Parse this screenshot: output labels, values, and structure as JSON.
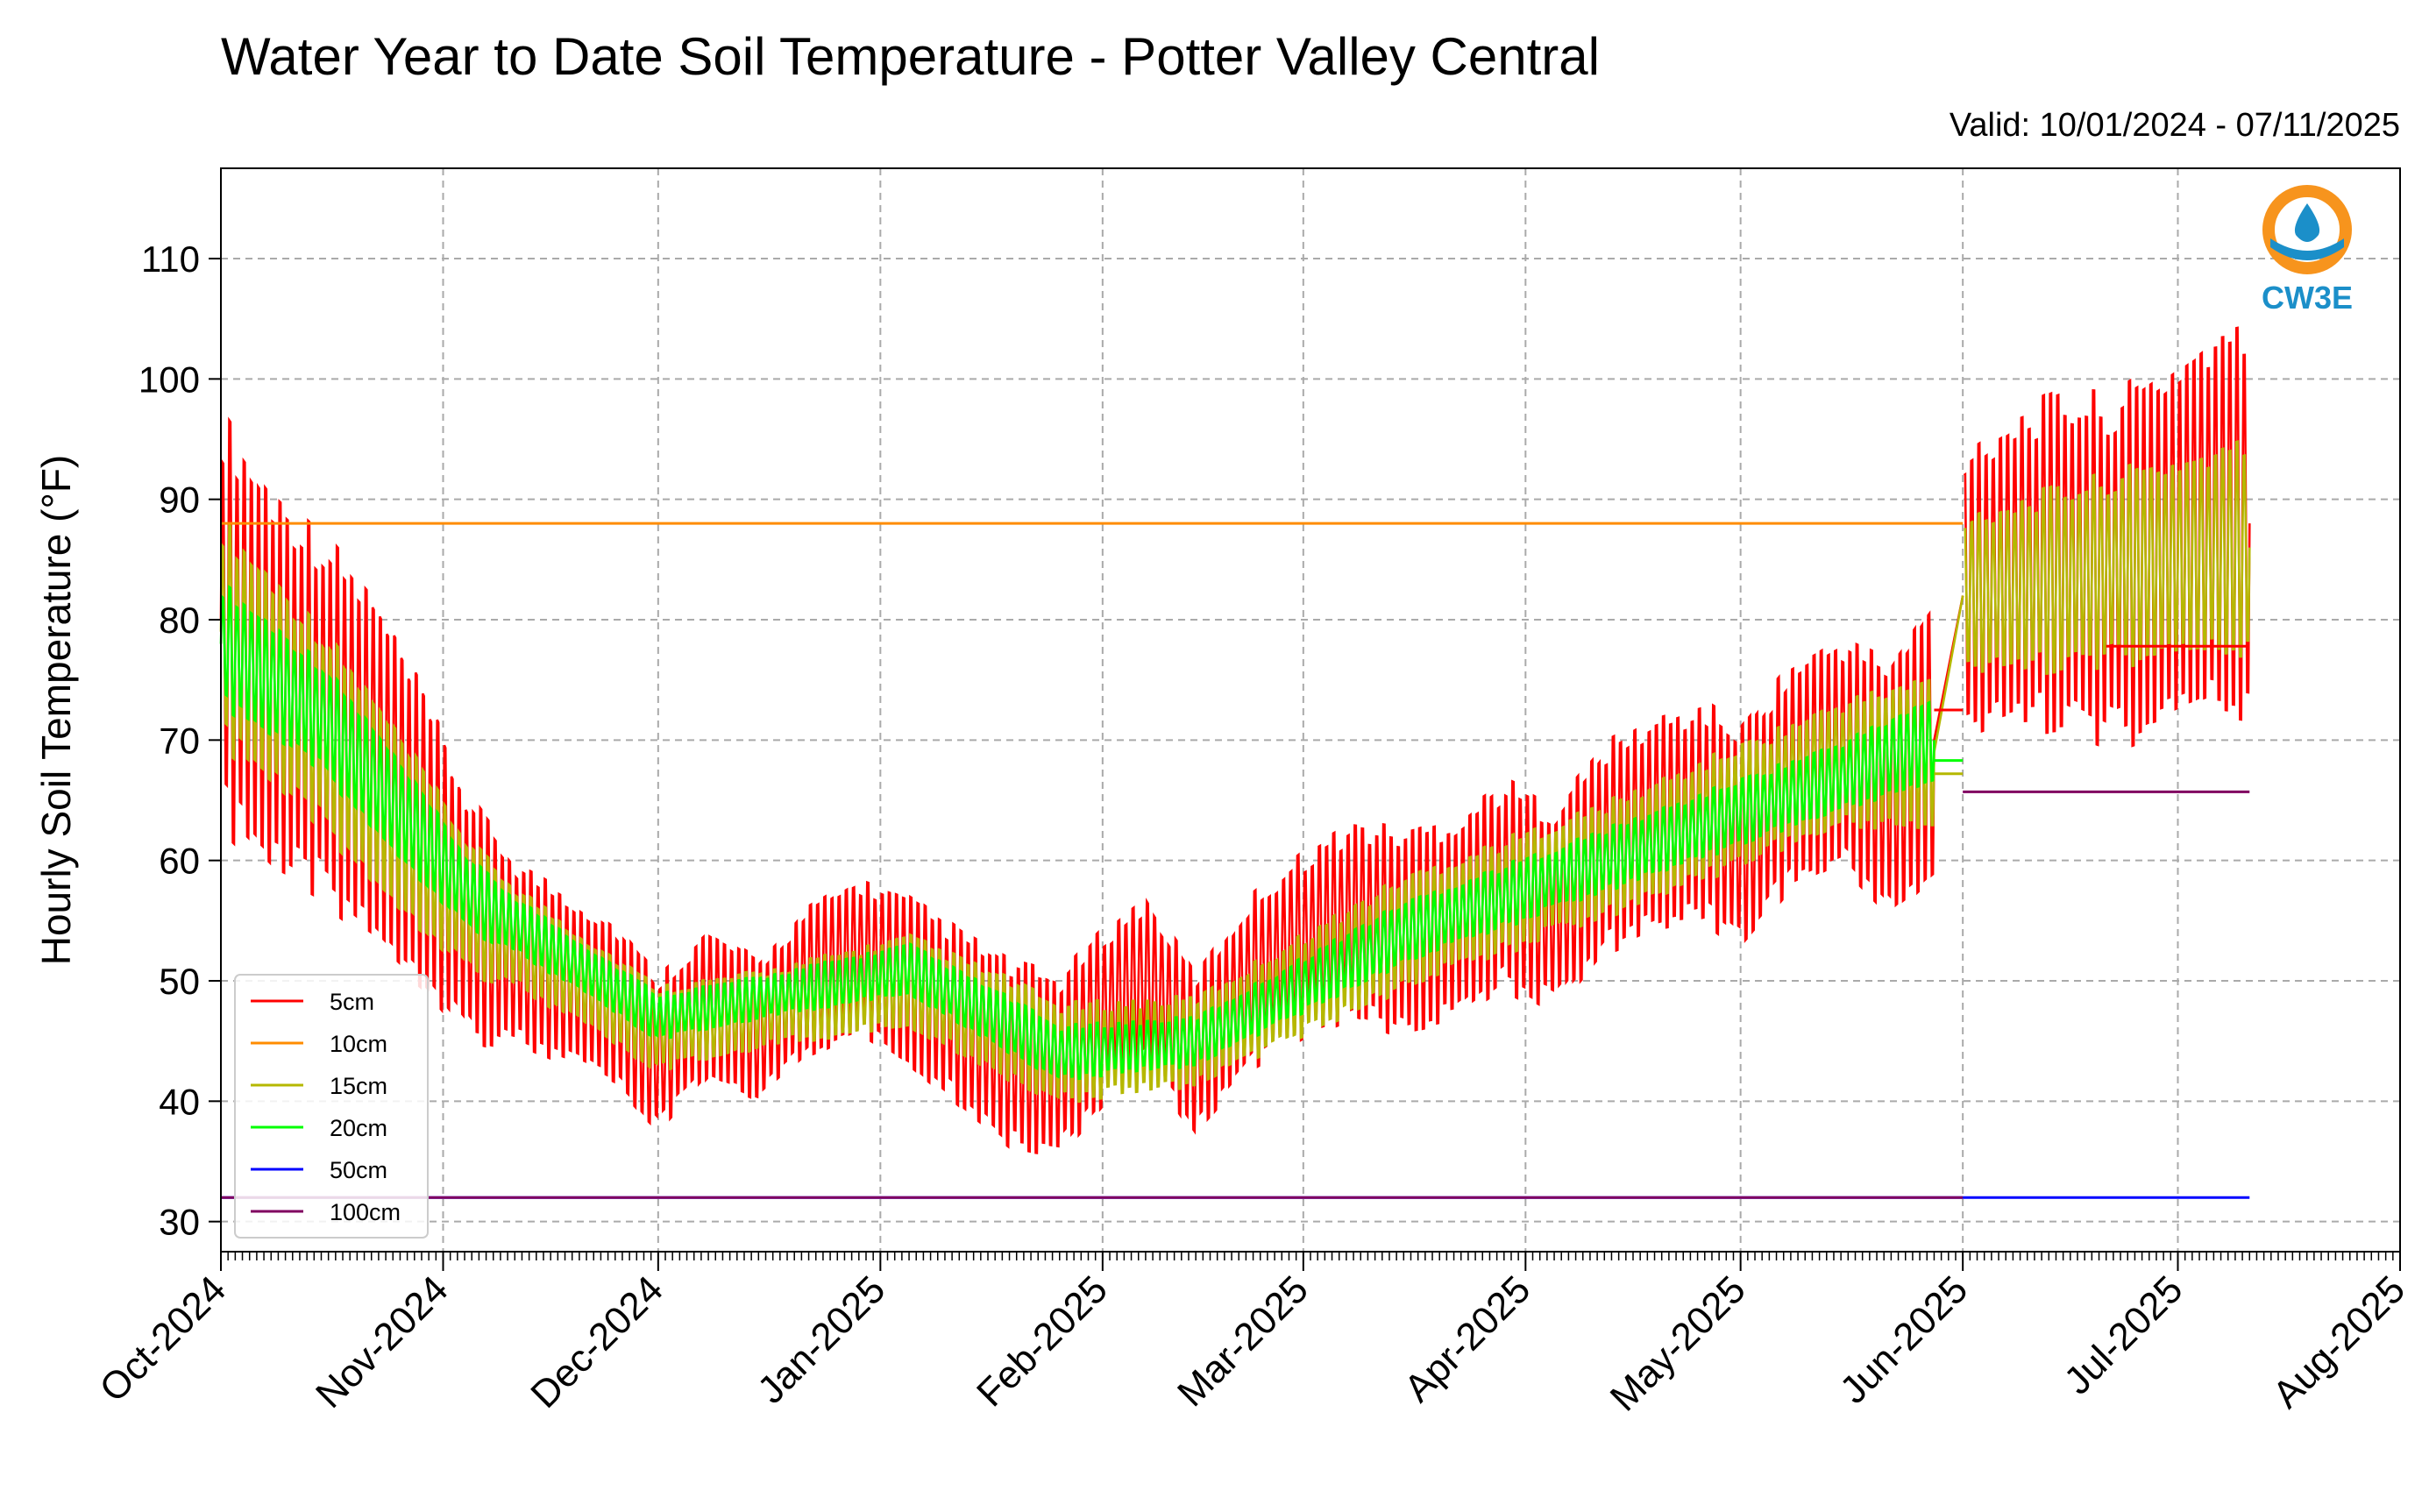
{
  "title": "Water Year to Date Soil Temperature - Potter Valley Central",
  "valid_text": "Valid: 10/01/2024 - 07/11/2025",
  "logo": {
    "text": "CW3E",
    "ring_color": "#f7941d",
    "water_color": "#1b8fc9",
    "drop_color": "#1b8fc9"
  },
  "chart_data": {
    "type": "line",
    "title": "Water Year to Date Soil Temperature - Potter Valley Central",
    "xlabel": "",
    "ylabel": "Hourly Soil Temperature (°F)",
    "ylim": [
      27.5,
      117.5
    ],
    "yticks": [
      30,
      40,
      50,
      60,
      70,
      80,
      90,
      100,
      110
    ],
    "xlim": [
      "2024-10-01",
      "2025-08-01"
    ],
    "xticks": [
      {
        "date": "2024-10-01",
        "label": "Oct-2024"
      },
      {
        "date": "2024-11-01",
        "label": "Nov-2024"
      },
      {
        "date": "2024-12-01",
        "label": "Dec-2024"
      },
      {
        "date": "2025-01-01",
        "label": "Jan-2025"
      },
      {
        "date": "2025-02-01",
        "label": "Feb-2025"
      },
      {
        "date": "2025-03-01",
        "label": "Mar-2025"
      },
      {
        "date": "2025-04-01",
        "label": "Apr-2025"
      },
      {
        "date": "2025-05-01",
        "label": "May-2025"
      },
      {
        "date": "2025-06-01",
        "label": "Jun-2025"
      },
      {
        "date": "2025-07-01",
        "label": "Jul-2025"
      },
      {
        "date": "2025-08-01",
        "label": "Aug-2025"
      }
    ],
    "grid": true,
    "legend_position": "lower-left",
    "series": [
      {
        "name": "5cm",
        "color": "#ff0000",
        "daily_mean": [
          [
            "2024-10-01",
            80
          ],
          [
            "2024-10-08",
            75
          ],
          [
            "2024-10-15",
            72
          ],
          [
            "2024-10-22",
            68
          ],
          [
            "2024-10-29",
            62
          ],
          [
            "2024-11-05",
            55
          ],
          [
            "2024-11-12",
            52
          ],
          [
            "2024-11-19",
            50
          ],
          [
            "2024-11-25",
            48
          ],
          [
            "2024-12-01",
            44
          ],
          [
            "2024-12-08",
            48
          ],
          [
            "2024-12-15",
            46
          ],
          [
            "2024-12-22",
            50
          ],
          [
            "2024-12-29",
            52
          ],
          [
            "2025-01-05",
            50
          ],
          [
            "2025-01-12",
            47
          ],
          [
            "2025-01-19",
            44
          ],
          [
            "2025-01-26",
            43
          ],
          [
            "2025-02-01",
            47
          ],
          [
            "2025-02-07",
            50
          ],
          [
            "2025-02-14",
            44
          ],
          [
            "2025-02-22",
            50
          ],
          [
            "2025-03-01",
            53
          ],
          [
            "2025-03-08",
            55
          ],
          [
            "2025-03-15",
            54
          ],
          [
            "2025-03-22",
            55
          ],
          [
            "2025-03-29",
            58
          ],
          [
            "2025-04-05",
            56
          ],
          [
            "2025-04-12",
            61
          ],
          [
            "2025-04-19",
            63
          ],
          [
            "2025-04-26",
            64
          ],
          [
            "2025-05-01",
            62
          ],
          [
            "2025-05-08",
            67
          ],
          [
            "2025-05-15",
            69
          ],
          [
            "2025-05-22",
            66
          ],
          [
            "2025-05-28",
            70
          ],
          [
            "2025-06-01",
            82
          ],
          [
            "2025-06-08",
            84
          ],
          [
            "2025-06-15",
            85
          ],
          [
            "2025-06-22",
            84
          ],
          [
            "2025-06-29",
            86
          ],
          [
            "2025-07-05",
            88
          ],
          [
            "2025-07-11",
            88
          ]
        ],
        "daily_amplitude": [
          [
            "2024-10-01",
            18
          ],
          [
            "2024-10-22",
            15
          ],
          [
            "2024-11-12",
            8
          ],
          [
            "2024-12-15",
            6
          ],
          [
            "2025-01-19",
            8
          ],
          [
            "2025-02-14",
            7
          ],
          [
            "2025-03-15",
            9
          ],
          [
            "2025-04-12",
            9
          ],
          [
            "2025-05-15",
            10
          ],
          [
            "2025-06-01",
            13
          ],
          [
            "2025-07-11",
            17
          ]
        ],
        "stuck_segments": [
          {
            "start": "2025-05-28",
            "end": "2025-06-01",
            "value": 72.5
          },
          {
            "start": "2025-06-21",
            "end": "2025-07-11",
            "value": 77.8
          }
        ]
      },
      {
        "name": "10cm",
        "color": "#ff8c00",
        "stuck_segments": [
          {
            "start": "2024-10-01",
            "end": "2025-06-01",
            "value": 88
          }
        ]
      },
      {
        "name": "15cm",
        "color": "#b5b800",
        "daily_mean": [
          [
            "2024-10-01",
            79
          ],
          [
            "2024-10-15",
            71
          ],
          [
            "2024-11-05",
            56
          ],
          [
            "2024-12-01",
            46
          ],
          [
            "2025-01-05",
            50
          ],
          [
            "2025-01-26",
            44
          ],
          [
            "2025-02-14",
            45
          ],
          [
            "2025-03-15",
            54
          ],
          [
            "2025-04-12",
            60
          ],
          [
            "2025-05-15",
            68
          ],
          [
            "2025-05-28",
            69
          ],
          [
            "2025-06-01",
            82
          ],
          [
            "2025-06-29",
            85
          ],
          [
            "2025-07-11",
            86
          ]
        ],
        "stuck_segments": [
          {
            "start": "2025-05-28",
            "end": "2025-06-01",
            "value": 67.2
          }
        ]
      },
      {
        "name": "20cm",
        "color": "#00ff00",
        "daily_mean": [
          [
            "2024-10-01",
            78
          ],
          [
            "2024-10-15",
            72
          ],
          [
            "2024-11-05",
            57
          ],
          [
            "2024-12-01",
            47
          ],
          [
            "2025-01-05",
            51
          ],
          [
            "2025-01-26",
            44
          ],
          [
            "2025-02-14",
            45
          ],
          [
            "2025-03-15",
            54
          ],
          [
            "2025-04-12",
            60
          ],
          [
            "2025-05-15",
            67
          ],
          [
            "2025-05-28",
            70
          ]
        ],
        "stuck_segments": [
          {
            "start": "2025-05-28",
            "end": "2025-06-01",
            "value": 68.3
          }
        ]
      },
      {
        "name": "50cm",
        "color": "#0000ff",
        "stuck_segments": [
          {
            "start": "2024-10-01",
            "end": "2025-07-11",
            "value": 32
          }
        ]
      },
      {
        "name": "100cm",
        "color": "#800060",
        "stuck_segments": [
          {
            "start": "2024-10-01",
            "end": "2025-06-01",
            "value": 32
          },
          {
            "start": "2025-06-01",
            "end": "2025-07-11",
            "value": 65.7
          }
        ]
      }
    ]
  }
}
